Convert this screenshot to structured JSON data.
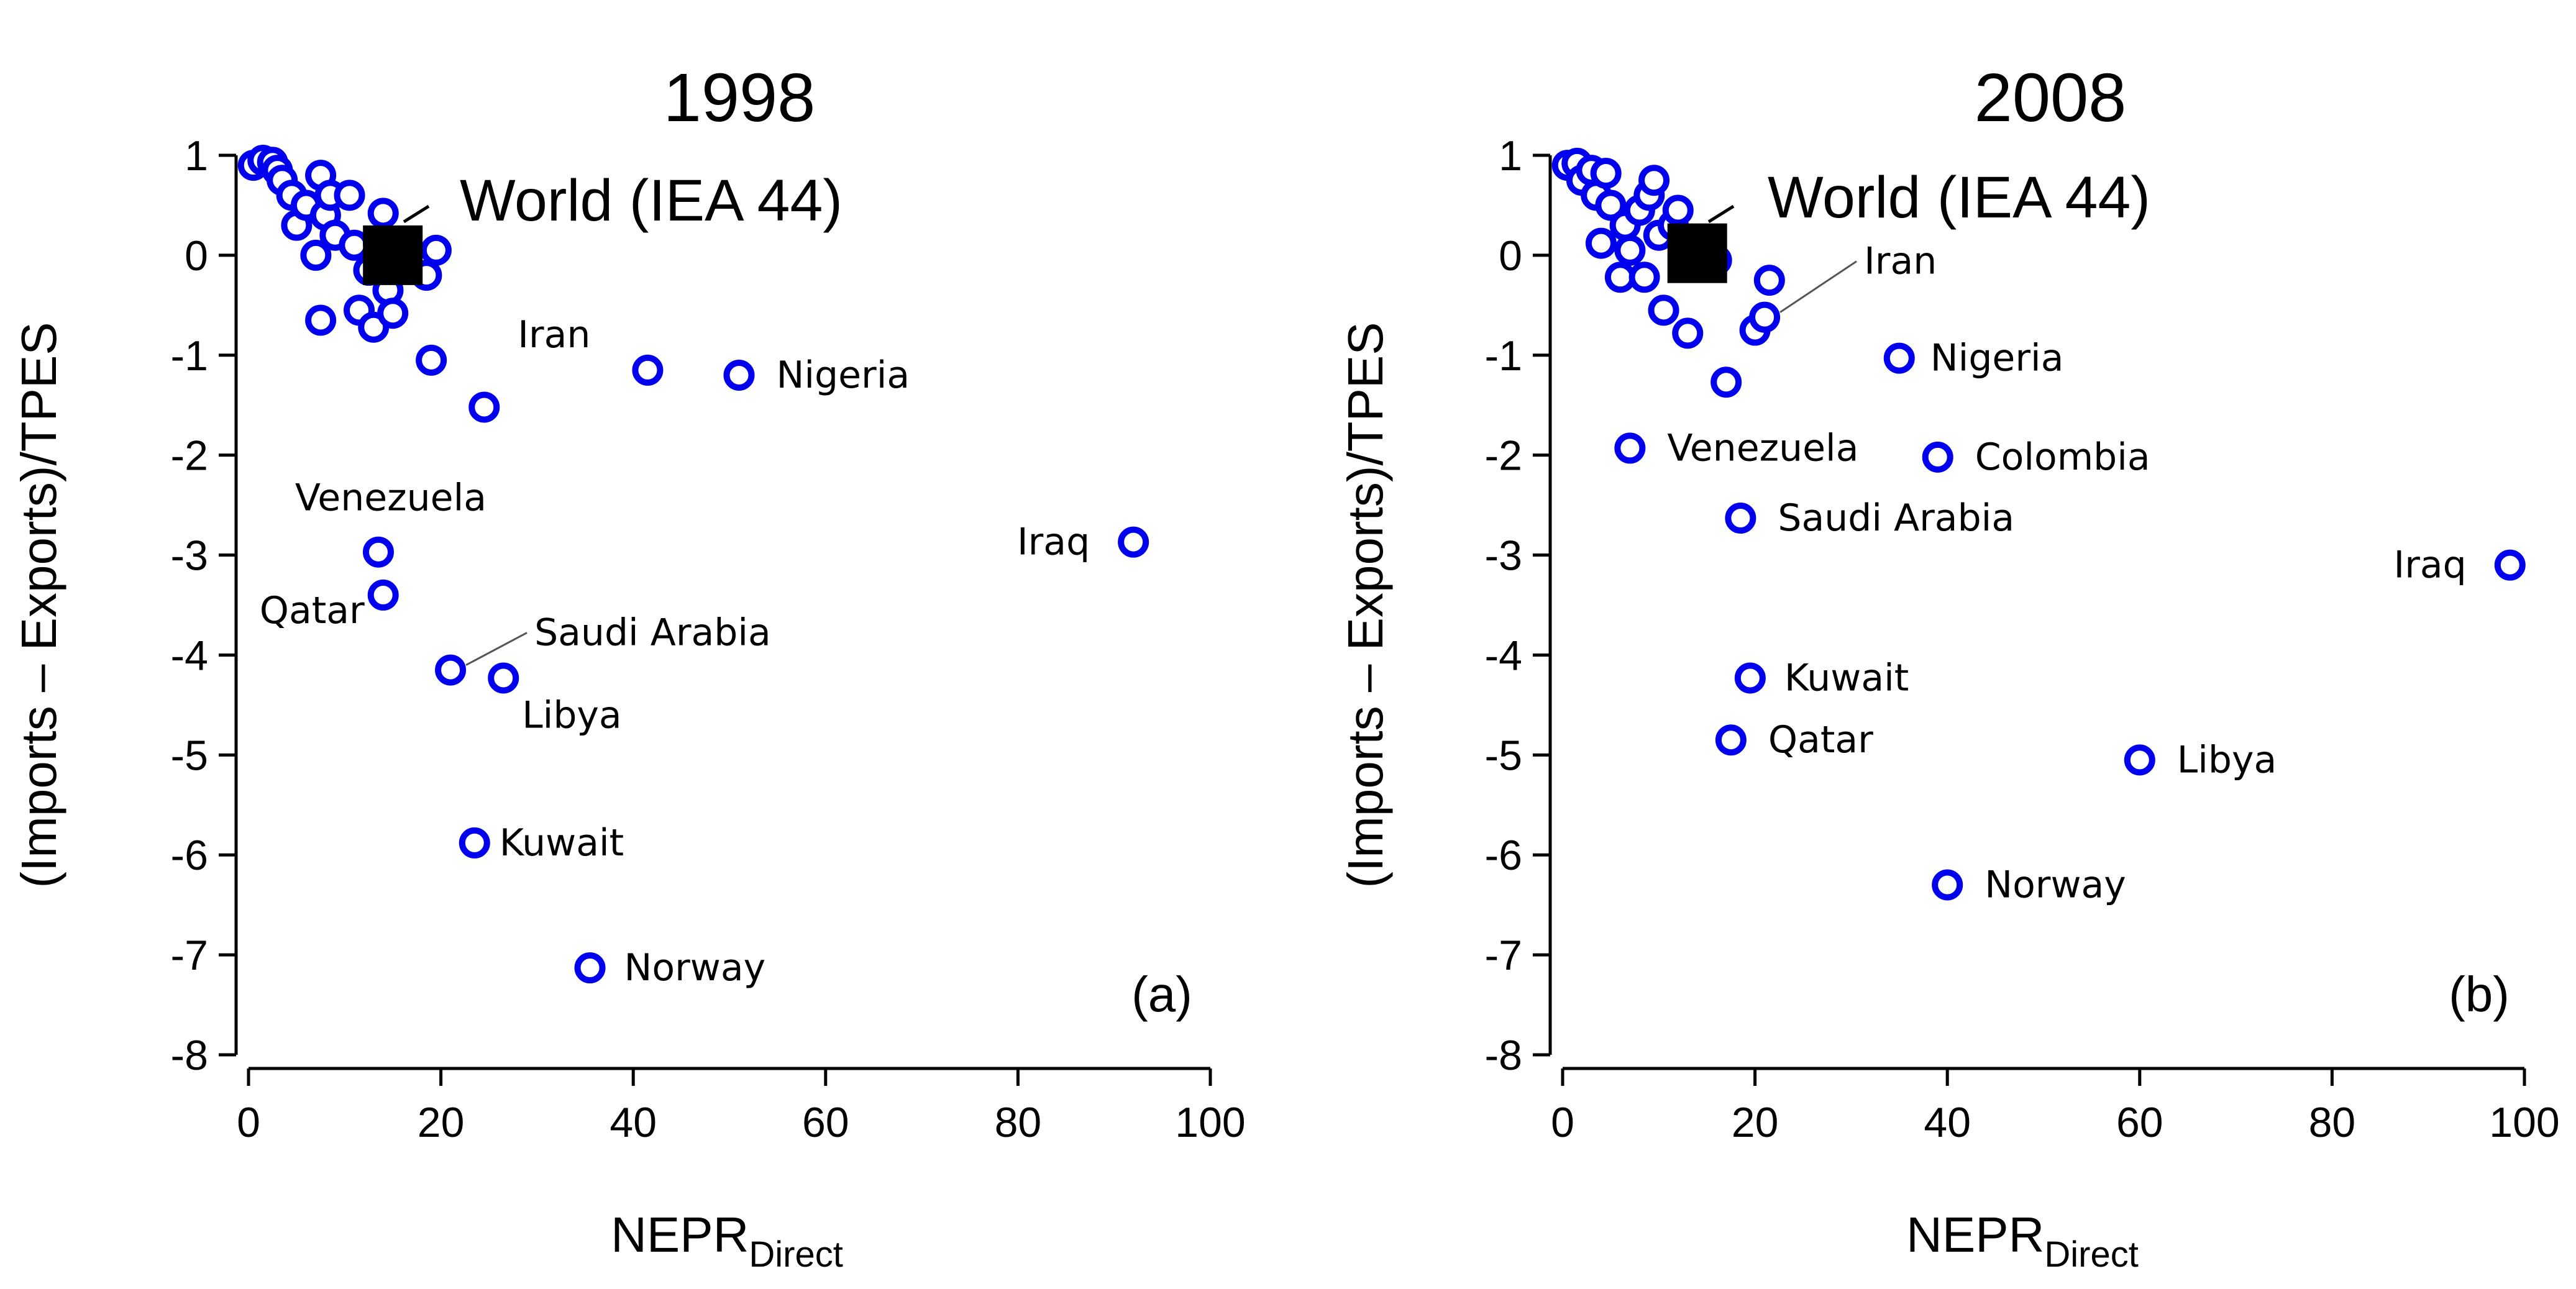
{
  "chart_data": [
    {
      "type": "scatter",
      "title": "1998",
      "panel_tag": "(a)",
      "xlabel": "NEPR",
      "xlabel_subscript": "Direct",
      "ylabel": "(Imports – Exports)/TPES",
      "xlim": [
        0,
        100
      ],
      "ylim": [
        -8,
        1
      ],
      "xticks": [
        "0",
        "20",
        "40",
        "60",
        "80",
        "100"
      ],
      "yticks": [
        "1",
        "0",
        "-1",
        "-2",
        "-3",
        "-4",
        "-5",
        "-6",
        "-7",
        "-8"
      ],
      "world": {
        "label": "World (IEA 44)",
        "x": 15,
        "y": 0.0
      },
      "labeled_points": [
        {
          "name": "Iran",
          "x": 41.5,
          "y": -1.15
        },
        {
          "name": "Nigeria",
          "x": 51,
          "y": -1.2
        },
        {
          "name": "Venezuela",
          "x": 13.5,
          "y": -2.97
        },
        {
          "name": "Qatar",
          "x": 14,
          "y": -3.4
        },
        {
          "name": "Saudi Arabia",
          "x": 21,
          "y": -4.15
        },
        {
          "name": "Libya",
          "x": 26.5,
          "y": -4.23
        },
        {
          "name": "Kuwait",
          "x": 23.5,
          "y": -5.88
        },
        {
          "name": "Norway",
          "x": 35.5,
          "y": -7.13
        },
        {
          "name": "Iraq",
          "x": 92,
          "y": -2.87
        }
      ],
      "other_points": [
        {
          "x": 0.5,
          "y": 0.9
        },
        {
          "x": 1.5,
          "y": 0.95
        },
        {
          "x": 2.5,
          "y": 0.93
        },
        {
          "x": 3,
          "y": 0.85
        },
        {
          "x": 3.5,
          "y": 0.75
        },
        {
          "x": 4.5,
          "y": 0.6
        },
        {
          "x": 5,
          "y": 0.3
        },
        {
          "x": 6,
          "y": 0.5
        },
        {
          "x": 7,
          "y": 0.0
        },
        {
          "x": 7.5,
          "y": 0.8
        },
        {
          "x": 8,
          "y": 0.4
        },
        {
          "x": 8.5,
          "y": 0.6
        },
        {
          "x": 9,
          "y": 0.2
        },
        {
          "x": 10.5,
          "y": 0.6
        },
        {
          "x": 11,
          "y": 0.1
        },
        {
          "x": 11.5,
          "y": -0.55
        },
        {
          "x": 12.5,
          "y": -0.15
        },
        {
          "x": 13,
          "y": -0.72
        },
        {
          "x": 13.5,
          "y": 0.12
        },
        {
          "x": 14,
          "y": 0.42
        },
        {
          "x": 14.5,
          "y": -0.35
        },
        {
          "x": 15,
          "y": -0.58
        },
        {
          "x": 7.5,
          "y": -0.65
        },
        {
          "x": 18.5,
          "y": -0.2
        },
        {
          "x": 19.5,
          "y": 0.05
        },
        {
          "x": 19,
          "y": -1.05
        },
        {
          "x": 24.5,
          "y": -1.52
        }
      ]
    },
    {
      "type": "scatter",
      "title": "2008",
      "panel_tag": "(b)",
      "xlabel": "NEPR",
      "xlabel_subscript": "Direct",
      "ylabel": "(Imports – Exports)/TPES",
      "xlim": [
        0,
        100
      ],
      "ylim": [
        -8,
        1
      ],
      "xticks": [
        "0",
        "20",
        "40",
        "60",
        "80",
        "100"
      ],
      "yticks": [
        "1",
        "0",
        "-1",
        "-2",
        "-3",
        "-4",
        "-5",
        "-6",
        "-7",
        "-8"
      ],
      "world": {
        "label": "World (IEA 44)",
        "x": 14,
        "y": 0.02
      },
      "labeled_points": [
        {
          "name": "Iran",
          "x": 21,
          "y": -0.62
        },
        {
          "name": "Nigeria",
          "x": 35,
          "y": -1.03
        },
        {
          "name": "Venezuela",
          "x": 7,
          "y": -1.93
        },
        {
          "name": "Colombia",
          "x": 39,
          "y": -2.02
        },
        {
          "name": "Saudi Arabia",
          "x": 18.5,
          "y": -2.63
        },
        {
          "name": "Iraq",
          "x": 98.5,
          "y": -3.1
        },
        {
          "name": "Kuwait",
          "x": 19.5,
          "y": -4.23
        },
        {
          "name": "Qatar",
          "x": 17.5,
          "y": -4.85
        },
        {
          "name": "Libya",
          "x": 60,
          "y": -5.05
        },
        {
          "name": "Norway",
          "x": 40,
          "y": -6.3
        }
      ],
      "other_points": [
        {
          "x": 0.5,
          "y": 0.9
        },
        {
          "x": 1.5,
          "y": 0.92
        },
        {
          "x": 2,
          "y": 0.75
        },
        {
          "x": 3,
          "y": 0.85
        },
        {
          "x": 3.5,
          "y": 0.6
        },
        {
          "x": 4,
          "y": 0.12
        },
        {
          "x": 4.5,
          "y": 0.82
        },
        {
          "x": 5,
          "y": 0.5
        },
        {
          "x": 6,
          "y": -0.22
        },
        {
          "x": 6.5,
          "y": 0.3
        },
        {
          "x": 7,
          "y": 0.05
        },
        {
          "x": 8,
          "y": 0.45
        },
        {
          "x": 8.5,
          "y": -0.22
        },
        {
          "x": 9,
          "y": 0.6
        },
        {
          "x": 9.5,
          "y": 0.75
        },
        {
          "x": 10,
          "y": 0.2
        },
        {
          "x": 10.5,
          "y": -0.55
        },
        {
          "x": 11.5,
          "y": 0.3
        },
        {
          "x": 12,
          "y": 0.45
        },
        {
          "x": 13,
          "y": -0.78
        },
        {
          "x": 16,
          "y": -0.05
        },
        {
          "x": 17,
          "y": -1.27
        },
        {
          "x": 20,
          "y": -0.75
        },
        {
          "x": 21.5,
          "y": -0.25
        }
      ]
    }
  ]
}
